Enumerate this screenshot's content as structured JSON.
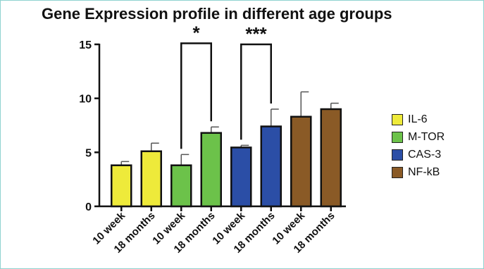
{
  "chart_data": {
    "type": "bar",
    "title": "Gene Expression profile in different age groups",
    "categories": [
      "10 week",
      "18 months",
      "10 week",
      "18 months",
      "10 week",
      "18 months",
      "10 week",
      "18 months"
    ],
    "values": [
      3.8,
      5.1,
      3.8,
      6.8,
      5.45,
      7.4,
      8.3,
      9.0
    ],
    "errors": [
      0.35,
      0.75,
      1.0,
      0.55,
      0.2,
      1.6,
      2.3,
      0.55
    ],
    "bar_colors": [
      "#eeea3a",
      "#eeea3a",
      "#6cc24a",
      "#6cc24a",
      "#2b4ea6",
      "#2b4ea6",
      "#8a5a26",
      "#8a5a26"
    ],
    "ylim": [
      0,
      15
    ],
    "yticks": [
      0,
      5,
      10,
      15
    ],
    "ytick_labels": [
      "0",
      "5",
      "10",
      "15"
    ],
    "xlabel": "",
    "ylabel": "",
    "grid": false,
    "legend_position": "right",
    "legend": [
      {
        "label": "IL-6",
        "color": "#eeea3a"
      },
      {
        "label": "M-TOR",
        "color": "#6cc24a"
      },
      {
        "label": "CAS-3",
        "color": "#2b4ea6"
      },
      {
        "label": "NF-kB",
        "color": "#8a5a26"
      }
    ],
    "significance": [
      {
        "from": 2,
        "to": 3,
        "label": "*",
        "y": 15.1
      },
      {
        "from": 4,
        "to": 5,
        "label": "***",
        "y": 15.0
      }
    ]
  }
}
